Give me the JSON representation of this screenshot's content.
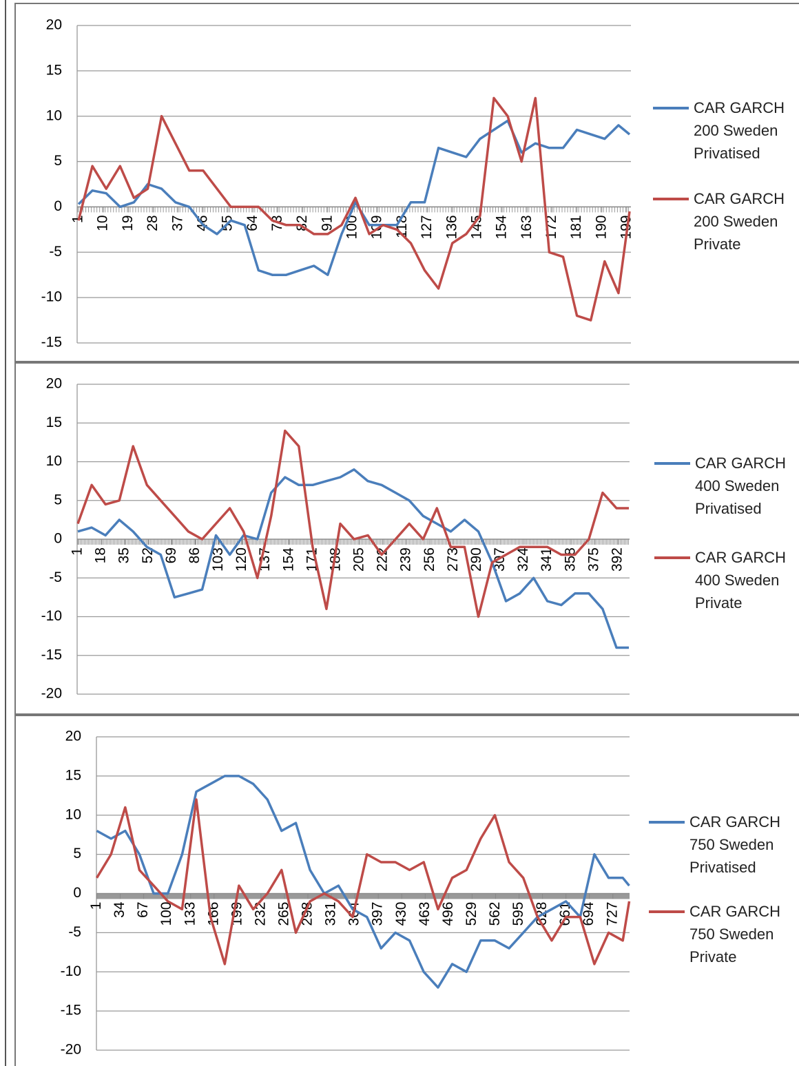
{
  "chart_data": [
    {
      "type": "line",
      "x": [
        1,
        6,
        11,
        16,
        21,
        26,
        31,
        36,
        41,
        46,
        51,
        56,
        61,
        66,
        71,
        76,
        81,
        86,
        91,
        96,
        101,
        106,
        111,
        116,
        121,
        126,
        131,
        136,
        141,
        146,
        151,
        156,
        161,
        166,
        171,
        176,
        181,
        186,
        191,
        196,
        200
      ],
      "series": [
        {
          "name": "CAR GARCH 200 Sweden Privatised",
          "color": "#4a7ebb",
          "values": [
            0.3,
            1.8,
            1.5,
            0,
            0.5,
            2.5,
            2,
            0.5,
            0,
            -2,
            -3,
            -1.5,
            -2,
            -7,
            -7.5,
            -7.5,
            -7,
            -6.5,
            -7.5,
            -3,
            0.5,
            -2,
            -2,
            -2,
            0.5,
            0.5,
            6.5,
            6,
            5.5,
            7.5,
            8.5,
            9.5,
            6,
            7,
            6.5,
            6.5,
            8.5,
            8,
            7.5,
            9,
            8
          ]
        },
        {
          "name": "CAR GARCH 200 Sweden Private",
          "color": "#be4b48",
          "values": [
            -1.5,
            4.5,
            2,
            4.5,
            1,
            2,
            10,
            7,
            4,
            4,
            2,
            0,
            0,
            0,
            -1.5,
            -2,
            -2,
            -3,
            -3,
            -2,
            1,
            -3,
            -2,
            -2.5,
            -4,
            -7,
            -9,
            -4,
            -3,
            -1,
            12,
            10,
            5,
            12,
            -5,
            -5.5,
            -12,
            -12.5,
            -6,
            -9.5,
            -0.5
          ]
        }
      ],
      "xlim": [
        0.5,
        200.5
      ],
      "xticks": [
        1,
        10,
        19,
        28,
        37,
        46,
        55,
        64,
        73,
        82,
        91,
        100,
        109,
        118,
        127,
        136,
        145,
        154,
        163,
        172,
        181,
        190,
        199
      ],
      "ylim": [
        -15,
        20
      ],
      "yticks": [
        -15,
        -10,
        -5,
        0,
        5,
        10,
        15,
        20
      ],
      "grid": true
    },
    {
      "type": "line",
      "x": [
        1,
        11,
        21,
        31,
        41,
        51,
        61,
        71,
        81,
        91,
        101,
        111,
        121,
        131,
        141,
        151,
        161,
        171,
        181,
        191,
        201,
        211,
        221,
        231,
        241,
        251,
        261,
        271,
        281,
        291,
        301,
        311,
        321,
        331,
        341,
        351,
        361,
        371,
        381,
        391,
        400
      ],
      "series": [
        {
          "name": "CAR GARCH 400 Sweden Privatised",
          "color": "#4a7ebb",
          "values": [
            1,
            1.5,
            0.5,
            2.5,
            1,
            -1,
            -2,
            -7.5,
            -7,
            -6.5,
            0.5,
            -2,
            0.5,
            0,
            6,
            8,
            7,
            7,
            7.5,
            8,
            9,
            7.5,
            7,
            6,
            5,
            3,
            2,
            1,
            2.5,
            1,
            -3,
            -8,
            -7,
            -5,
            -8,
            -8.5,
            -7,
            -7,
            -9,
            -14,
            -14
          ]
        },
        {
          "name": "CAR GARCH 400 Sweden Private",
          "color": "#be4b48",
          "values": [
            2,
            7,
            4.5,
            5,
            12,
            7,
            5,
            3,
            1,
            0,
            2,
            4,
            1,
            -5,
            3,
            14,
            12,
            -1,
            -9,
            2,
            0,
            0.5,
            -2,
            0,
            2,
            0,
            4,
            -1,
            -1,
            -10,
            -3,
            -2,
            -1,
            -1,
            -1,
            -2,
            -2,
            0,
            6,
            4,
            4
          ]
        }
      ],
      "xlim": [
        0.5,
        400.5
      ],
      "xticks": [
        1,
        18,
        35,
        52,
        69,
        86,
        103,
        120,
        137,
        154,
        171,
        188,
        205,
        222,
        239,
        256,
        273,
        290,
        307,
        324,
        341,
        358,
        375,
        392
      ],
      "ylim": [
        -20,
        20
      ],
      "yticks": [
        -20,
        -15,
        -10,
        -5,
        0,
        5,
        10,
        15,
        20
      ],
      "grid": true
    },
    {
      "type": "line",
      "x": [
        1,
        21,
        41,
        61,
        81,
        101,
        121,
        141,
        161,
        181,
        201,
        221,
        241,
        261,
        281,
        301,
        321,
        341,
        361,
        381,
        401,
        421,
        441,
        461,
        481,
        501,
        521,
        541,
        561,
        581,
        601,
        621,
        641,
        661,
        681,
        701,
        721,
        741,
        750
      ],
      "series": [
        {
          "name": "CAR GARCH 750 Sweden Privatised",
          "color": "#4a7ebb",
          "values": [
            8,
            7,
            8,
            5,
            0,
            0,
            5,
            13,
            14,
            15,
            15,
            14,
            12,
            8,
            9,
            3,
            0,
            1,
            -2,
            -3,
            -7,
            -5,
            -6,
            -10,
            -12,
            -9,
            -10,
            -6,
            -6,
            -7,
            -5,
            -3,
            -2,
            -1,
            -3,
            5,
            2,
            2,
            1
          ]
        },
        {
          "name": "CAR GARCH 750 Sweden Private",
          "color": "#be4b48",
          "values": [
            2,
            5,
            11,
            3,
            1,
            -1,
            -2,
            12,
            -3,
            -9,
            1,
            -2,
            0,
            3,
            -5,
            -1,
            0,
            -1,
            -3,
            5,
            4,
            4,
            3,
            4,
            -2,
            2,
            3,
            7,
            10,
            4,
            2,
            -3,
            -6,
            -3,
            -3,
            -9,
            -5,
            -6,
            -1
          ]
        }
      ],
      "xlim": [
        0.5,
        750.5
      ],
      "xticks": [
        1,
        34,
        67,
        100,
        133,
        166,
        199,
        232,
        265,
        298,
        331,
        364,
        397,
        430,
        463,
        496,
        529,
        562,
        595,
        628,
        661,
        694,
        727
      ],
      "ylim": [
        -20,
        20
      ],
      "yticks": [
        -20,
        -15,
        -10,
        -5,
        0,
        5,
        10,
        15,
        20
      ],
      "grid": true
    }
  ]
}
